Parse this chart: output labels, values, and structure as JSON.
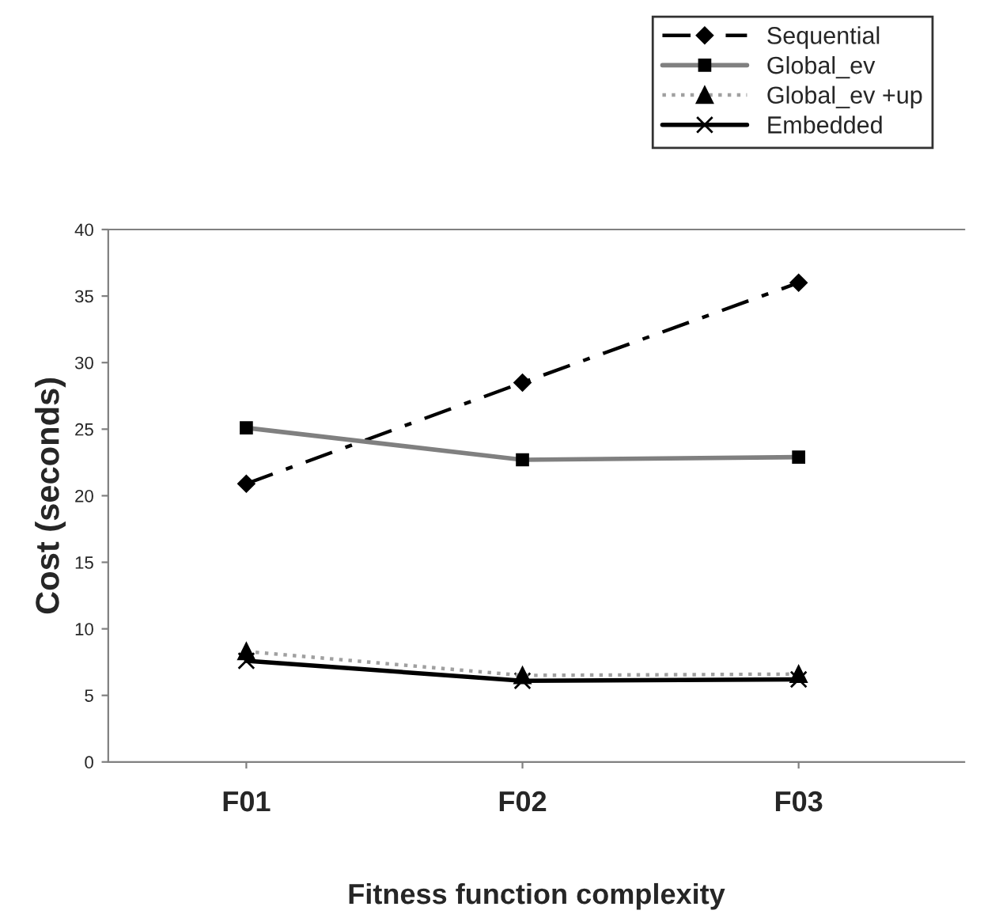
{
  "chart_data": {
    "type": "line",
    "xlabel": "Fitness function complexity",
    "ylabel": "Cost (seconds)",
    "categories": [
      "F01",
      "F02",
      "F03"
    ],
    "series": [
      {
        "name": "Sequential",
        "color": "#000000",
        "values": [
          20.9,
          28.5,
          36.0
        ],
        "marker": "diamond",
        "line_style": "dashed"
      },
      {
        "name": "Global_ev",
        "color": "#808080",
        "values": [
          25.1,
          22.7,
          22.9
        ],
        "marker": "square",
        "line_style": "solid"
      },
      {
        "name": "Global_ev +up",
        "color": "#a0a0a0",
        "values": [
          8.3,
          6.5,
          6.6
        ],
        "marker": "triangle",
        "line_style": "dotted"
      },
      {
        "name": "Embedded",
        "color": "#000000",
        "values": [
          7.6,
          6.1,
          6.2
        ],
        "marker": "cross",
        "line_style": "solid"
      }
    ],
    "ylim": [
      0,
      40
    ],
    "yticks": [
      0,
      5,
      10,
      15,
      20,
      25,
      30,
      35,
      40
    ],
    "grid": false,
    "legend": "top right"
  }
}
